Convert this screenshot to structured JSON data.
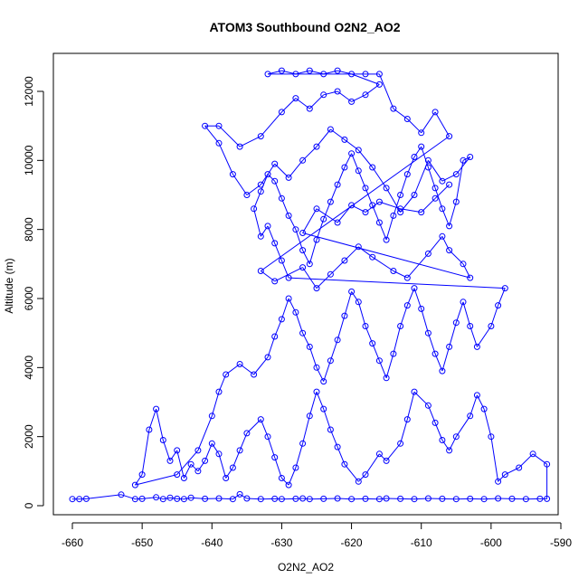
{
  "chart_data": {
    "type": "scatter",
    "title": "ATOM3 Southbound O2N2_AO2",
    "xlabel": "O2N2_AO2",
    "ylabel": "Altitude (m)",
    "xlim": [
      -660,
      -590
    ],
    "ylim": [
      0,
      12600
    ],
    "x_ticks": [
      -660,
      -650,
      -640,
      -630,
      -620,
      -610,
      -600,
      -590
    ],
    "y_ticks": [
      0,
      2000,
      4000,
      6000,
      8000,
      10000,
      12000
    ],
    "grid": false,
    "legend": "none",
    "colors": {
      "series": "#0000ff",
      "axis": "#000000"
    },
    "series": [
      {
        "marker": "open-circle",
        "line": "connected",
        "points": [
          [
            -660,
            190
          ],
          [
            -659,
            190
          ],
          [
            -658,
            200
          ],
          [
            -653,
            320
          ],
          [
            -651,
            190
          ],
          [
            -650,
            200
          ],
          [
            -648,
            240
          ],
          [
            -647,
            190
          ],
          [
            -646,
            230
          ],
          [
            -645,
            200
          ],
          [
            -644,
            190
          ],
          [
            -643,
            230
          ],
          [
            -641,
            200
          ],
          [
            -639,
            210
          ],
          [
            -637,
            190
          ],
          [
            -636,
            330
          ],
          [
            -635,
            210
          ],
          [
            -633,
            190
          ],
          [
            -631,
            200
          ],
          [
            -630,
            190
          ],
          [
            -628,
            200
          ],
          [
            -627,
            210
          ],
          [
            -626,
            190
          ],
          [
            -624,
            200
          ],
          [
            -622,
            210
          ],
          [
            -620,
            190
          ],
          [
            -618,
            200
          ],
          [
            -616,
            190
          ],
          [
            -615,
            210
          ],
          [
            -613,
            200
          ],
          [
            -611,
            190
          ],
          [
            -609,
            210
          ],
          [
            -607,
            200
          ],
          [
            -605,
            190
          ],
          [
            -603,
            200
          ],
          [
            -601,
            190
          ],
          [
            -599,
            210
          ],
          [
            -597,
            200
          ],
          [
            -595,
            190
          ],
          [
            -593,
            200
          ],
          [
            -592,
            200
          ],
          [
            -592,
            1200
          ],
          [
            -594,
            1500
          ],
          [
            -596,
            1100
          ],
          [
            -598,
            900
          ],
          [
            -599,
            700
          ],
          [
            -600,
            2000
          ],
          [
            -601,
            2800
          ],
          [
            -602,
            3200
          ],
          [
            -603,
            2600
          ],
          [
            -605,
            2000
          ],
          [
            -606,
            1600
          ],
          [
            -607,
            1900
          ],
          [
            -608,
            2400
          ],
          [
            -609,
            2900
          ],
          [
            -611,
            3300
          ],
          [
            -612,
            2500
          ],
          [
            -613,
            1800
          ],
          [
            -615,
            1300
          ],
          [
            -616,
            1500
          ],
          [
            -618,
            900
          ],
          [
            -619,
            700
          ],
          [
            -621,
            1200
          ],
          [
            -622,
            1700
          ],
          [
            -623,
            2200
          ],
          [
            -624,
            2800
          ],
          [
            -625,
            3300
          ],
          [
            -626,
            2600
          ],
          [
            -627,
            1800
          ],
          [
            -628,
            1100
          ],
          [
            -629,
            600
          ],
          [
            -630,
            800
          ],
          [
            -631,
            1400
          ],
          [
            -632,
            2000
          ],
          [
            -633,
            2500
          ],
          [
            -635,
            2100
          ],
          [
            -636,
            1600
          ],
          [
            -637,
            1100
          ],
          [
            -638,
            800
          ],
          [
            -639,
            1500
          ],
          [
            -640,
            1800
          ],
          [
            -641,
            1300
          ],
          [
            -642,
            1000
          ],
          [
            -643,
            1200
          ],
          [
            -644,
            800
          ],
          [
            -645,
            1600
          ],
          [
            -646,
            1300
          ],
          [
            -647,
            1900
          ],
          [
            -648,
            2800
          ],
          [
            -649,
            2200
          ],
          [
            -650,
            900
          ],
          [
            -651,
            600
          ],
          [
            -645,
            900
          ],
          [
            -642,
            1600
          ],
          [
            -640,
            2600
          ],
          [
            -639,
            3300
          ],
          [
            -638,
            3800
          ],
          [
            -636,
            4100
          ],
          [
            -634,
            3800
          ],
          [
            -632,
            4300
          ],
          [
            -631,
            4900
          ],
          [
            -630,
            5400
          ],
          [
            -629,
            6000
          ],
          [
            -628,
            5600
          ],
          [
            -627,
            5000
          ],
          [
            -626,
            4600
          ],
          [
            -625,
            4000
          ],
          [
            -624,
            3600
          ],
          [
            -623,
            4200
          ],
          [
            -622,
            4800
          ],
          [
            -621,
            5500
          ],
          [
            -620,
            6200
          ],
          [
            -619,
            5900
          ],
          [
            -618,
            5200
          ],
          [
            -617,
            4700
          ],
          [
            -616,
            4200
          ],
          [
            -615,
            3700
          ],
          [
            -614,
            4400
          ],
          [
            -613,
            5200
          ],
          [
            -612,
            5800
          ],
          [
            -611,
            6300
          ],
          [
            -610,
            5700
          ],
          [
            -609,
            5000
          ],
          [
            -608,
            4400
          ],
          [
            -607,
            3900
          ],
          [
            -606,
            4600
          ],
          [
            -605,
            5300
          ],
          [
            -604,
            5900
          ],
          [
            -603,
            5200
          ],
          [
            -602,
            4600
          ],
          [
            -600,
            5200
          ],
          [
            -599,
            5800
          ],
          [
            -598,
            6300
          ],
          [
            -629,
            6600
          ],
          [
            -630,
            7100
          ],
          [
            -631,
            7600
          ],
          [
            -632,
            8100
          ],
          [
            -633,
            7800
          ],
          [
            -634,
            8600
          ],
          [
            -633,
            9100
          ],
          [
            -632,
            9600
          ],
          [
            -631,
            9400
          ],
          [
            -630,
            8900
          ],
          [
            -629,
            8400
          ],
          [
            -628,
            8000
          ],
          [
            -627,
            7400
          ],
          [
            -626,
            7000
          ],
          [
            -625,
            7700
          ],
          [
            -624,
            8300
          ],
          [
            -623,
            8800
          ],
          [
            -622,
            9300
          ],
          [
            -621,
            9800
          ],
          [
            -620,
            10200
          ],
          [
            -619,
            9700
          ],
          [
            -618,
            9200
          ],
          [
            -617,
            8700
          ],
          [
            -616,
            8200
          ],
          [
            -615,
            7700
          ],
          [
            -614,
            8400
          ],
          [
            -613,
            9000
          ],
          [
            -612,
            9600
          ],
          [
            -611,
            10100
          ],
          [
            -610,
            10400
          ],
          [
            -609,
            9800
          ],
          [
            -608,
            9200
          ],
          [
            -607,
            8600
          ],
          [
            -606,
            8100
          ],
          [
            -605,
            8800
          ],
          [
            -604,
            10000
          ],
          [
            -603,
            10100
          ],
          [
            -605,
            9600
          ],
          [
            -607,
            9400
          ],
          [
            -609,
            10000
          ],
          [
            -611,
            9000
          ],
          [
            -613,
            8500
          ],
          [
            -615,
            9200
          ],
          [
            -617,
            9800
          ],
          [
            -619,
            10300
          ],
          [
            -621,
            10600
          ],
          [
            -623,
            10900
          ],
          [
            -625,
            10400
          ],
          [
            -627,
            10000
          ],
          [
            -629,
            9500
          ],
          [
            -631,
            9900
          ],
          [
            -633,
            9300
          ],
          [
            -635,
            9000
          ],
          [
            -637,
            9600
          ],
          [
            -639,
            10500
          ],
          [
            -641,
            11000
          ],
          [
            -639,
            11000
          ],
          [
            -636,
            10400
          ],
          [
            -633,
            10700
          ],
          [
            -630,
            11400
          ],
          [
            -628,
            11800
          ],
          [
            -626,
            11500
          ],
          [
            -624,
            11900
          ],
          [
            -622,
            12000
          ],
          [
            -620,
            11700
          ],
          [
            -618,
            11900
          ],
          [
            -616,
            12200
          ],
          [
            -620,
            12500
          ],
          [
            -622,
            12600
          ],
          [
            -624,
            12500
          ],
          [
            -626,
            12600
          ],
          [
            -628,
            12500
          ],
          [
            -630,
            12600
          ],
          [
            -632,
            12500
          ],
          [
            -618,
            12500
          ],
          [
            -616,
            12500
          ],
          [
            -614,
            11500
          ],
          [
            -612,
            11200
          ],
          [
            -610,
            10800
          ],
          [
            -608,
            11400
          ],
          [
            -606,
            10700
          ],
          [
            -633,
            6800
          ],
          [
            -631,
            6500
          ],
          [
            -627,
            6900
          ],
          [
            -625,
            6300
          ],
          [
            -623,
            6700
          ],
          [
            -621,
            7100
          ],
          [
            -619,
            7500
          ],
          [
            -617,
            7200
          ],
          [
            -614,
            6800
          ],
          [
            -612,
            6600
          ],
          [
            -609,
            7300
          ],
          [
            -607,
            7800
          ],
          [
            -606,
            7400
          ],
          [
            -604,
            7000
          ],
          [
            -603,
            6600
          ],
          [
            -627,
            7900
          ],
          [
            -625,
            8600
          ],
          [
            -622,
            8200
          ],
          [
            -620,
            8700
          ],
          [
            -618,
            8500
          ],
          [
            -616,
            8800
          ],
          [
            -613,
            8600
          ],
          [
            -610,
            8500
          ],
          [
            -608,
            8900
          ],
          [
            -606,
            9300
          ]
        ]
      }
    ]
  }
}
